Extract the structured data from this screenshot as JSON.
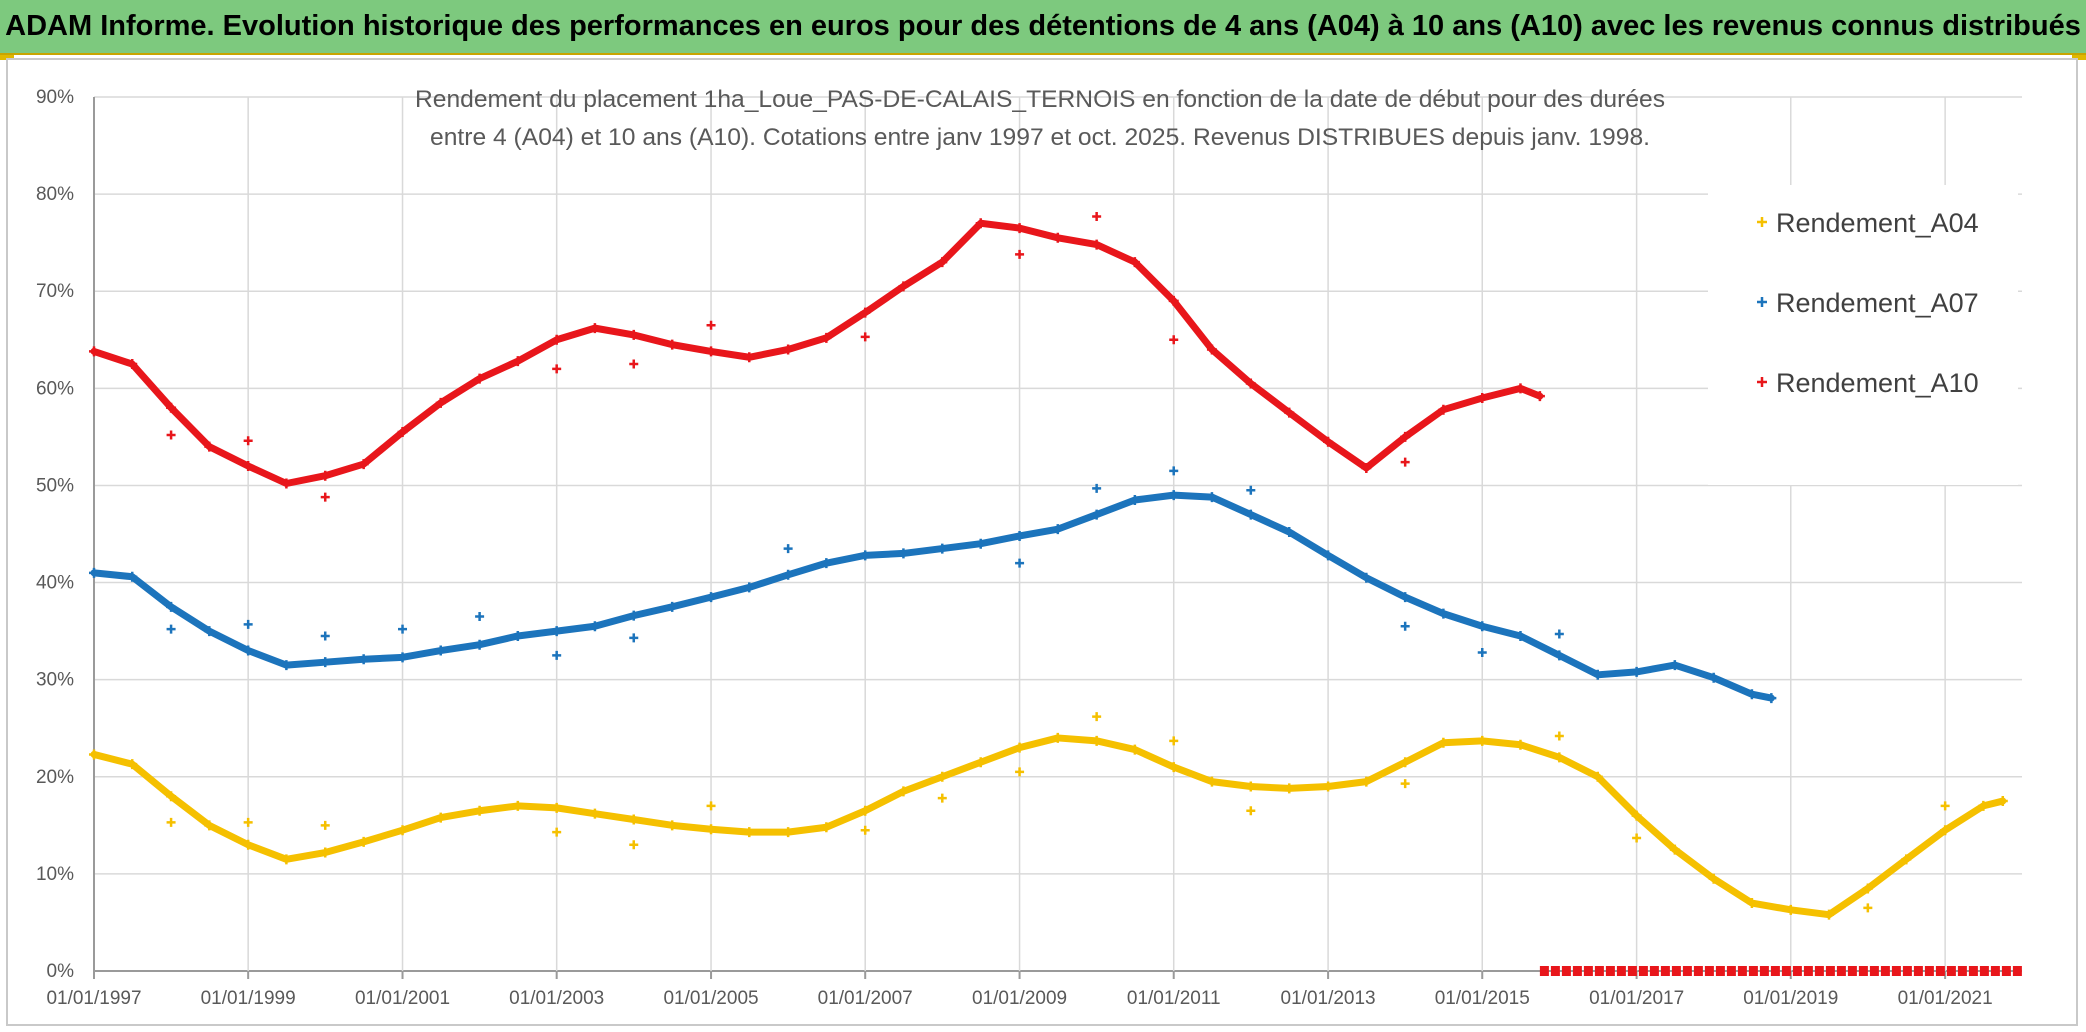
{
  "banner": {
    "title": "ADAM Informe. Evolution historique des performances en euros pour des détentions de 4 ans (A04) à 10 ans (A10) avec les revenus connus distribués"
  },
  "chart_data": {
    "type": "scatter",
    "title_lines": [
      "Rendement du placement 1ha_Loue_PAS-DE-CALAIS_TERNOIS en fonction de la date de début pour des durées",
      "entre 4 (A04) et 10 ans (A10). Cotations entre janv 1997 et oct. 2025. Revenus DISTRIBUES depuis janv. 1998."
    ],
    "xlabel": "",
    "ylabel": "",
    "x_range": [
      "1997-01-01",
      "2021-12-31"
    ],
    "ylim": [
      0,
      0.9
    ],
    "x_ticks": [
      "01/01/1997",
      "01/01/1999",
      "01/01/2001",
      "01/01/2003",
      "01/01/2005",
      "01/01/2007",
      "01/01/2009",
      "01/01/2011",
      "01/01/2013",
      "01/01/2015",
      "01/01/2017",
      "01/01/2019",
      "01/01/2021"
    ],
    "y_ticks": [
      "0%",
      "10%",
      "20%",
      "30%",
      "40%",
      "50%",
      "60%",
      "70%",
      "80%",
      "90%"
    ],
    "grid": true,
    "legend_position": "top-right",
    "series": [
      {
        "name": "Rendement_A04",
        "color": "#f5c000",
        "points": [
          [
            "1997-01-01",
            0.223
          ],
          [
            "1997-07-01",
            0.213
          ],
          [
            "1998-01-01",
            0.18
          ],
          [
            "1998-07-01",
            0.15
          ],
          [
            "1999-01-01",
            0.13
          ],
          [
            "1999-07-01",
            0.115
          ],
          [
            "2000-01-01",
            0.122
          ],
          [
            "2000-07-01",
            0.133
          ],
          [
            "2001-01-01",
            0.145
          ],
          [
            "2001-07-01",
            0.158
          ],
          [
            "2002-01-01",
            0.165
          ],
          [
            "2002-07-01",
            0.17
          ],
          [
            "2003-01-01",
            0.168
          ],
          [
            "2003-07-01",
            0.162
          ],
          [
            "2004-01-01",
            0.156
          ],
          [
            "2004-07-01",
            0.15
          ],
          [
            "2005-01-01",
            0.146
          ],
          [
            "2005-07-01",
            0.143
          ],
          [
            "2006-01-01",
            0.143
          ],
          [
            "2006-07-01",
            0.148
          ],
          [
            "2007-01-01",
            0.165
          ],
          [
            "2007-07-01",
            0.185
          ],
          [
            "2008-01-01",
            0.2
          ],
          [
            "2008-07-01",
            0.215
          ],
          [
            "2009-01-01",
            0.23
          ],
          [
            "2009-07-01",
            0.24
          ],
          [
            "2010-01-01",
            0.237
          ],
          [
            "2010-07-01",
            0.228
          ],
          [
            "2011-01-01",
            0.21
          ],
          [
            "2011-07-01",
            0.195
          ],
          [
            "2012-01-01",
            0.19
          ],
          [
            "2012-07-01",
            0.188
          ],
          [
            "2013-01-01",
            0.19
          ],
          [
            "2013-07-01",
            0.195
          ],
          [
            "2014-01-01",
            0.215
          ],
          [
            "2014-07-01",
            0.235
          ],
          [
            "2015-01-01",
            0.237
          ],
          [
            "2015-07-01",
            0.233
          ],
          [
            "2016-01-01",
            0.22
          ],
          [
            "2016-07-01",
            0.2
          ],
          [
            "2017-01-01",
            0.16
          ],
          [
            "2017-07-01",
            0.125
          ],
          [
            "2018-01-01",
            0.095
          ],
          [
            "2018-07-01",
            0.07
          ],
          [
            "2019-01-01",
            0.063
          ],
          [
            "2019-07-01",
            0.058
          ],
          [
            "2020-01-01",
            0.085
          ],
          [
            "2020-07-01",
            0.115
          ],
          [
            "2021-01-01",
            0.145
          ],
          [
            "2021-07-01",
            0.17
          ],
          [
            "2021-10-01",
            0.175
          ]
        ],
        "outliers": [
          [
            "1998-01-01",
            0.153
          ],
          [
            "1999-01-01",
            0.153
          ],
          [
            "2000-01-01",
            0.15
          ],
          [
            "2003-01-01",
            0.143
          ],
          [
            "2004-01-01",
            0.13
          ],
          [
            "2005-01-01",
            0.17
          ],
          [
            "2007-01-01",
            0.145
          ],
          [
            "2008-01-01",
            0.178
          ],
          [
            "2009-01-01",
            0.205
          ],
          [
            "2010-01-01",
            0.262
          ],
          [
            "2011-01-01",
            0.237
          ],
          [
            "2012-01-01",
            0.165
          ],
          [
            "2014-01-01",
            0.193
          ],
          [
            "2016-01-01",
            0.242
          ],
          [
            "2017-01-01",
            0.137
          ],
          [
            "2020-01-01",
            0.065
          ],
          [
            "2021-01-01",
            0.17
          ]
        ]
      },
      {
        "name": "Rendement_A07",
        "color": "#1c74bc",
        "points": [
          [
            "1997-01-01",
            0.41
          ],
          [
            "1997-07-01",
            0.406
          ],
          [
            "1998-01-01",
            0.375
          ],
          [
            "1998-07-01",
            0.35
          ],
          [
            "1999-01-01",
            0.33
          ],
          [
            "1999-07-01",
            0.315
          ],
          [
            "2000-01-01",
            0.318
          ],
          [
            "2000-07-01",
            0.321
          ],
          [
            "2001-01-01",
            0.323
          ],
          [
            "2001-07-01",
            0.33
          ],
          [
            "2002-01-01",
            0.336
          ],
          [
            "2002-07-01",
            0.345
          ],
          [
            "2003-01-01",
            0.35
          ],
          [
            "2003-07-01",
            0.355
          ],
          [
            "2004-01-01",
            0.366
          ],
          [
            "2004-07-01",
            0.375
          ],
          [
            "2005-01-01",
            0.385
          ],
          [
            "2005-07-01",
            0.395
          ],
          [
            "2006-01-01",
            0.408
          ],
          [
            "2006-07-01",
            0.42
          ],
          [
            "2007-01-01",
            0.428
          ],
          [
            "2007-07-01",
            0.43
          ],
          [
            "2008-01-01",
            0.435
          ],
          [
            "2008-07-01",
            0.44
          ],
          [
            "2009-01-01",
            0.448
          ],
          [
            "2009-07-01",
            0.455
          ],
          [
            "2010-01-01",
            0.47
          ],
          [
            "2010-07-01",
            0.485
          ],
          [
            "2011-01-01",
            0.49
          ],
          [
            "2011-07-01",
            0.488
          ],
          [
            "2012-01-01",
            0.47
          ],
          [
            "2012-07-01",
            0.452
          ],
          [
            "2013-01-01",
            0.428
          ],
          [
            "2013-07-01",
            0.405
          ],
          [
            "2014-01-01",
            0.385
          ],
          [
            "2014-07-01",
            0.368
          ],
          [
            "2015-01-01",
            0.355
          ],
          [
            "2015-07-01",
            0.345
          ],
          [
            "2016-01-01",
            0.325
          ],
          [
            "2016-07-01",
            0.305
          ],
          [
            "2017-01-01",
            0.308
          ],
          [
            "2017-07-01",
            0.315
          ],
          [
            "2018-01-01",
            0.302
          ],
          [
            "2018-07-01",
            0.285
          ],
          [
            "2018-10-01",
            0.281
          ]
        ],
        "outliers": [
          [
            "1998-01-01",
            0.352
          ],
          [
            "1999-01-01",
            0.357
          ],
          [
            "2000-01-01",
            0.345
          ],
          [
            "2001-01-01",
            0.352
          ],
          [
            "2002-01-01",
            0.365
          ],
          [
            "2003-01-01",
            0.325
          ],
          [
            "2004-01-01",
            0.343
          ],
          [
            "2006-01-01",
            0.435
          ],
          [
            "2009-01-01",
            0.42
          ],
          [
            "2010-01-01",
            0.497
          ],
          [
            "2011-01-01",
            0.515
          ],
          [
            "2012-01-01",
            0.495
          ],
          [
            "2014-01-01",
            0.355
          ],
          [
            "2015-01-01",
            0.328
          ],
          [
            "2016-01-01",
            0.347
          ]
        ]
      },
      {
        "name": "Rendement_A10",
        "color": "#e8161b",
        "points": [
          [
            "1997-01-01",
            0.638
          ],
          [
            "1997-07-01",
            0.625
          ],
          [
            "1998-01-01",
            0.58
          ],
          [
            "1998-07-01",
            0.54
          ],
          [
            "1999-01-01",
            0.52
          ],
          [
            "1999-07-01",
            0.502
          ],
          [
            "2000-01-01",
            0.51
          ],
          [
            "2000-07-01",
            0.522
          ],
          [
            "2001-01-01",
            0.555
          ],
          [
            "2001-07-01",
            0.585
          ],
          [
            "2002-01-01",
            0.61
          ],
          [
            "2002-07-01",
            0.628
          ],
          [
            "2003-01-01",
            0.65
          ],
          [
            "2003-07-01",
            0.662
          ],
          [
            "2004-01-01",
            0.655
          ],
          [
            "2004-07-01",
            0.645
          ],
          [
            "2005-01-01",
            0.638
          ],
          [
            "2005-07-01",
            0.632
          ],
          [
            "2006-01-01",
            0.64
          ],
          [
            "2006-07-01",
            0.652
          ],
          [
            "2007-01-01",
            0.678
          ],
          [
            "2007-07-01",
            0.705
          ],
          [
            "2008-01-01",
            0.73
          ],
          [
            "2008-07-01",
            0.77
          ],
          [
            "2009-01-01",
            0.765
          ],
          [
            "2009-07-01",
            0.755
          ],
          [
            "2010-01-01",
            0.748
          ],
          [
            "2010-07-01",
            0.73
          ],
          [
            "2011-01-01",
            0.69
          ],
          [
            "2011-07-01",
            0.64
          ],
          [
            "2012-01-01",
            0.605
          ],
          [
            "2012-07-01",
            0.575
          ],
          [
            "2013-01-01",
            0.545
          ],
          [
            "2013-07-01",
            0.518
          ],
          [
            "2014-01-01",
            0.55
          ],
          [
            "2014-07-01",
            0.578
          ],
          [
            "2015-01-01",
            0.59
          ],
          [
            "2015-07-01",
            0.6
          ],
          [
            "2015-10-01",
            0.592
          ]
        ],
        "outliers": [
          [
            "1998-01-01",
            0.552
          ],
          [
            "1999-01-01",
            0.546
          ],
          [
            "2000-01-01",
            0.488
          ],
          [
            "2003-01-01",
            0.62
          ],
          [
            "2004-01-01",
            0.625
          ],
          [
            "2005-01-01",
            0.665
          ],
          [
            "2007-01-01",
            0.653
          ],
          [
            "2009-01-01",
            0.738
          ],
          [
            "2010-01-01",
            0.777
          ],
          [
            "2011-01-01",
            0.65
          ],
          [
            "2014-01-01",
            0.524
          ]
        ],
        "zero_run": [
          "2015-10-01",
          "2021-12-31",
          0
        ]
      }
    ]
  }
}
